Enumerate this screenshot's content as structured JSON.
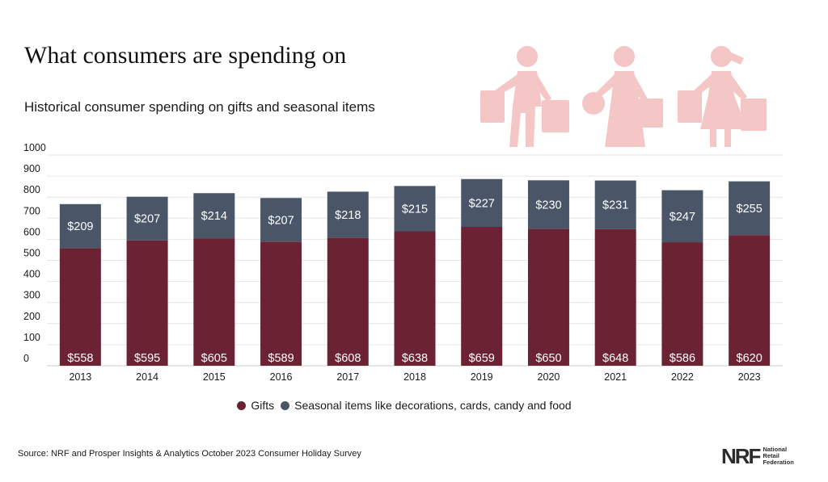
{
  "header": {
    "title": "What consumers are spending on",
    "subtitle": "Historical consumer spending on gifts and seasonal items"
  },
  "colors": {
    "gifts": "#6b2334",
    "seasonal": "#4a5568",
    "illustration": "#f4c6c6",
    "grid": "#e6e6e6"
  },
  "chart_data": {
    "type": "bar",
    "stacked": true,
    "categories": [
      "2013",
      "2014",
      "2015",
      "2016",
      "2017",
      "2018",
      "2019",
      "2020",
      "2021",
      "2022",
      "2023"
    ],
    "series": [
      {
        "name": "Gifts",
        "values": [
          558,
          595,
          605,
          589,
          608,
          638,
          659,
          650,
          648,
          586,
          620
        ]
      },
      {
        "name": "Seasonal items like decorations, cards, candy and food",
        "values": [
          209,
          207,
          214,
          207,
          218,
          215,
          227,
          230,
          231,
          247,
          255
        ]
      }
    ],
    "data_label_prefix": "$",
    "ylim": [
      0,
      1000
    ],
    "yticks": [
      0,
      100,
      200,
      300,
      400,
      500,
      600,
      700,
      800,
      900,
      1000
    ],
    "grid": true,
    "legend_position": "bottom"
  },
  "legend": {
    "gifts_label": "Gifts",
    "seasonal_label": "Seasonal items like decorations, cards, candy and food"
  },
  "footer": {
    "source": "Source: NRF and Prosper Insights & Analytics October 2023 Consumer Holiday Survey",
    "logo_mark": "NRF",
    "logo_line1": "National",
    "logo_line2": "Retail",
    "logo_line3": "Federation"
  },
  "illustration_icon": "shoppers-with-bags-icon"
}
